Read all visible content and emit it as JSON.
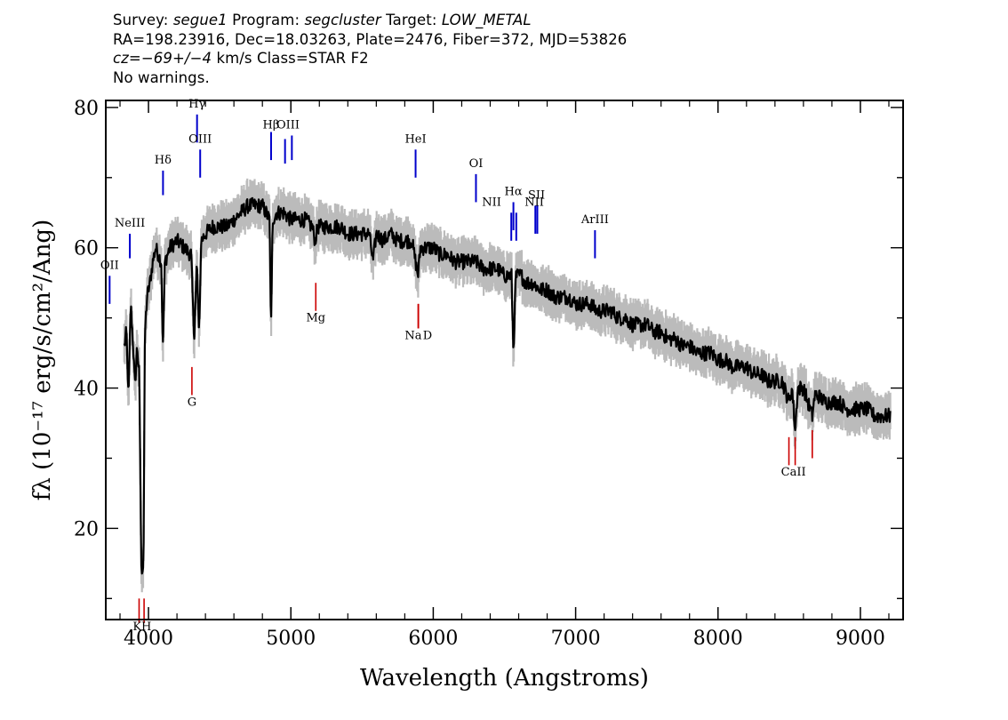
{
  "header": {
    "line1": {
      "survey_label": "Survey:",
      "survey": "segue1",
      "program_label": "Program:",
      "program": "segcluster",
      "target_label": "Target:",
      "target": "LOW_METAL"
    },
    "line2": "RA=198.23916, Dec=18.03263, Plate=2476, Fiber=372, MJD=53826",
    "line3": {
      "cz": "cz=−69+/−4",
      "rest": " km/s Class=STAR F2"
    },
    "line4": "No warnings."
  },
  "chart_data": {
    "type": "line",
    "xlabel": "Wavelength (Angstroms)",
    "ylabel": "fλ (10⁻¹⁷ erg/s/cm²/Ang)",
    "xlim": [
      3700,
      9300
    ],
    "ylim": [
      7,
      81
    ],
    "x_ticks": [
      4000,
      5000,
      6000,
      7000,
      8000,
      9000
    ],
    "y_ticks": [
      20,
      40,
      60,
      80
    ],
    "x_range_data": [
      3830,
      9210
    ],
    "series": [
      {
        "name": "flux_smoothed",
        "color": "#000000",
        "points": [
          [
            3830,
            46
          ],
          [
            3845,
            48
          ],
          [
            3860,
            38
          ],
          [
            3875,
            52
          ],
          [
            3890,
            47
          ],
          [
            3905,
            40
          ],
          [
            3920,
            46
          ],
          [
            3935,
            42
          ],
          [
            3950,
            14
          ],
          [
            3965,
            15
          ],
          [
            3975,
            48
          ],
          [
            3990,
            53
          ],
          [
            4010,
            55
          ],
          [
            4030,
            58
          ],
          [
            4050,
            60
          ],
          [
            4070,
            59
          ],
          [
            4090,
            58
          ],
          [
            4101,
            45
          ],
          [
            4115,
            58
          ],
          [
            4150,
            60
          ],
          [
            4200,
            61
          ],
          [
            4250,
            60
          ],
          [
            4300,
            59
          ],
          [
            4320,
            47
          ],
          [
            4340,
            58
          ],
          [
            4355,
            47
          ],
          [
            4370,
            61
          ],
          [
            4400,
            62
          ],
          [
            4450,
            63
          ],
          [
            4500,
            63
          ],
          [
            4550,
            63
          ],
          [
            4600,
            64
          ],
          [
            4650,
            65
          ],
          [
            4700,
            66
          ],
          [
            4750,
            66
          ],
          [
            4800,
            66
          ],
          [
            4850,
            64
          ],
          [
            4861,
            48
          ],
          [
            4872,
            64
          ],
          [
            4900,
            65
          ],
          [
            4950,
            65
          ],
          [
            5000,
            64
          ],
          [
            5050,
            64
          ],
          [
            5100,
            64
          ],
          [
            5150,
            63
          ],
          [
            5170,
            61
          ],
          [
            5190,
            63
          ],
          [
            5250,
            63
          ],
          [
            5300,
            63
          ],
          [
            5350,
            63
          ],
          [
            5400,
            62
          ],
          [
            5450,
            62
          ],
          [
            5500,
            62
          ],
          [
            5550,
            62
          ],
          [
            5577,
            58
          ],
          [
            5600,
            62
          ],
          [
            5650,
            61
          ],
          [
            5700,
            62
          ],
          [
            5750,
            61
          ],
          [
            5800,
            61
          ],
          [
            5850,
            61
          ],
          [
            5893,
            56
          ],
          [
            5910,
            60
          ],
          [
            5950,
            60
          ],
          [
            6000,
            60
          ],
          [
            6050,
            59
          ],
          [
            6100,
            59
          ],
          [
            6150,
            58
          ],
          [
            6200,
            58
          ],
          [
            6250,
            58
          ],
          [
            6300,
            58
          ],
          [
            6350,
            57
          ],
          [
            6400,
            57
          ],
          [
            6450,
            57
          ],
          [
            6500,
            56
          ],
          [
            6550,
            56
          ],
          [
            6563,
            45
          ],
          [
            6580,
            56
          ],
          [
            6620,
            56
          ],
          [
            6650,
            55
          ],
          [
            6700,
            55
          ],
          [
            6750,
            54
          ],
          [
            6800,
            54
          ],
          [
            6850,
            53
          ],
          [
            6900,
            53
          ],
          [
            6950,
            53
          ],
          [
            7000,
            52
          ],
          [
            7050,
            52
          ],
          [
            7100,
            52
          ],
          [
            7150,
            51
          ],
          [
            7200,
            51
          ],
          [
            7250,
            51
          ],
          [
            7300,
            50
          ],
          [
            7350,
            50
          ],
          [
            7400,
            49
          ],
          [
            7450,
            49
          ],
          [
            7500,
            49
          ],
          [
            7550,
            48
          ],
          [
            7600,
            48
          ],
          [
            7650,
            47
          ],
          [
            7700,
            47
          ],
          [
            7750,
            46
          ],
          [
            7800,
            46
          ],
          [
            7850,
            45
          ],
          [
            7900,
            45
          ],
          [
            7950,
            45
          ],
          [
            8000,
            44
          ],
          [
            8050,
            44
          ],
          [
            8100,
            43
          ],
          [
            8150,
            43
          ],
          [
            8200,
            43
          ],
          [
            8250,
            42
          ],
          [
            8300,
            42
          ],
          [
            8350,
            41
          ],
          [
            8400,
            41
          ],
          [
            8450,
            41
          ],
          [
            8498,
            38
          ],
          [
            8520,
            40
          ],
          [
            8542,
            34
          ],
          [
            8560,
            40
          ],
          [
            8600,
            40
          ],
          [
            8662,
            36
          ],
          [
            8680,
            39
          ],
          [
            8700,
            39
          ],
          [
            8750,
            38
          ],
          [
            8800,
            38
          ],
          [
            8850,
            38
          ],
          [
            8900,
            37
          ],
          [
            8950,
            37
          ],
          [
            9000,
            37
          ],
          [
            9050,
            37
          ],
          [
            9100,
            36
          ],
          [
            9150,
            36
          ],
          [
            9210,
            36
          ]
        ]
      },
      {
        "name": "flux_error_band",
        "color": "#bbbbbb",
        "halfwidth": 2.2
      }
    ],
    "emission_lines": [
      {
        "label": "OII",
        "lambda": 3727,
        "y_top": 56,
        "y_bot": 52
      },
      {
        "label": "NeIII",
        "lambda": 3869,
        "y_top": 62,
        "y_bot": 58.5
      },
      {
        "label": "Hδ",
        "lambda": 4102,
        "y_top": 71,
        "y_bot": 67.5
      },
      {
        "label": "Hγ",
        "lambda": 4341,
        "y_top": 79,
        "y_bot": 75
      },
      {
        "label": "OIII",
        "lambda": 4363,
        "y_top": 74,
        "y_bot": 70
      },
      {
        "label": "Hβ",
        "lambda": 4861,
        "y_top": 76.5,
        "y_bot": 72.5
      },
      {
        "label": "OIII",
        "lambda": 4959,
        "y_top": 75.5,
        "y_bot": 72
      },
      {
        "label": "OIII",
        "lambda": 5007,
        "y_top": 76,
        "y_bot": 72.5
      },
      {
        "label": "HeI",
        "lambda": 5876,
        "y_top": 74,
        "y_bot": 70
      },
      {
        "label": "OI",
        "lambda": 6300,
        "y_top": 70.5,
        "y_bot": 66.5
      },
      {
        "label": "NII",
        "lambda": 6548,
        "y_top": 65,
        "y_bot": 61
      },
      {
        "label": "Hα",
        "lambda": 6563,
        "y_top": 66.5,
        "y_bot": 62.5
      },
      {
        "label": "NII",
        "lambda": 6583,
        "y_top": 65,
        "y_bot": 61
      },
      {
        "label": "SII",
        "lambda": 6717,
        "y_top": 66,
        "y_bot": 62
      },
      {
        "label": "SII",
        "lambda": 6731,
        "y_top": 66,
        "y_bot": 62
      },
      {
        "label": "ArIII",
        "lambda": 7136,
        "y_top": 62.5,
        "y_bot": 58.5
      }
    ],
    "absorption_lines": [
      {
        "label": "K",
        "lambda": 3934,
        "y_top": 10,
        "y_bot": 6.5
      },
      {
        "label": "H",
        "lambda": 3969,
        "y_top": 10,
        "y_bot": 6.5
      },
      {
        "label": "G",
        "lambda": 4305,
        "y_top": 43,
        "y_bot": 39
      },
      {
        "label": "Mg",
        "lambda": 5175,
        "y_top": 55,
        "y_bot": 51
      },
      {
        "label": "Na",
        "lambda": 5894,
        "y_top": 52,
        "y_bot": 48.5
      },
      {
        "label": "D",
        "lambda": 5896,
        "y_top": 52,
        "y_bot": 48.5
      },
      {
        "label": "CaII",
        "lambda": 8498,
        "y_top": 33,
        "y_bot": 29
      },
      {
        "label": "CaII",
        "lambda": 8542,
        "y_top": 33,
        "y_bot": 29
      },
      {
        "label": "CaII",
        "lambda": 8662,
        "y_top": 34,
        "y_bot": 30
      }
    ],
    "labels": {
      "emission": [
        {
          "text": "OII",
          "lambda": 3727,
          "y": 57
        },
        {
          "text": "NeIII",
          "lambda": 3869,
          "y": 63
        },
        {
          "text": "Hδ",
          "lambda": 4102,
          "y": 72
        },
        {
          "text": "Hγ",
          "lambda": 4341,
          "y": 80
        },
        {
          "text": "OIII",
          "lambda": 4363,
          "y": 75
        },
        {
          "text": "Hβ",
          "lambda": 4861,
          "y": 77
        },
        {
          "text": "OIII",
          "lambda": 4980,
          "y": 77
        },
        {
          "text": "HeI",
          "lambda": 5876,
          "y": 75
        },
        {
          "text": "OI",
          "lambda": 6300,
          "y": 71.5
        },
        {
          "text": "NII",
          "lambda": 6410,
          "y": 66
        },
        {
          "text": "Hα",
          "lambda": 6563,
          "y": 67.5
        },
        {
          "text": "NII",
          "lambda": 6710,
          "y": 66
        },
        {
          "text": "SII",
          "lambda": 6725,
          "y": 67
        },
        {
          "text": "ArIII",
          "lambda": 7136,
          "y": 63.5
        }
      ],
      "absorption": [
        {
          "text": "K",
          "lambda": 3920,
          "y": 5.5
        },
        {
          "text": "H",
          "lambda": 3985,
          "y": 5.5
        },
        {
          "text": "G",
          "lambda": 4305,
          "y": 37.5
        },
        {
          "text": "Mg",
          "lambda": 5175,
          "y": 49.5
        },
        {
          "text": "Na",
          "lambda": 5860,
          "y": 47
        },
        {
          "text": "D",
          "lambda": 5960,
          "y": 47
        },
        {
          "text": "CaII",
          "lambda": 8530,
          "y": 27.5
        }
      ]
    },
    "colors": {
      "emission": "#0000cc",
      "absorption": "#cc0000",
      "flux": "#000000",
      "error": "#bbbbbb"
    }
  }
}
